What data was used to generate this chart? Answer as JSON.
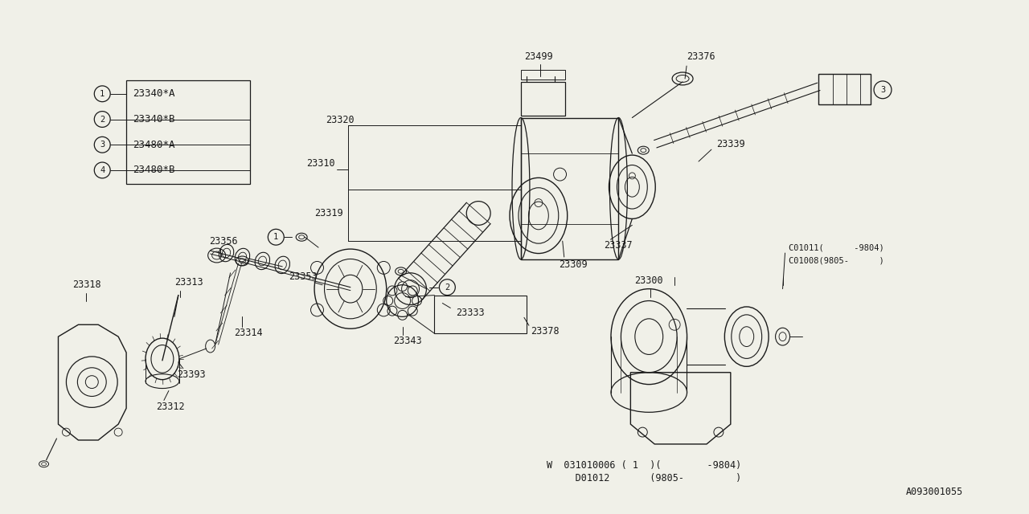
{
  "bg_color": "#f0f0e8",
  "line_color": "#1a1a1a",
  "doc_id": "A093001055",
  "legend_items": [
    {
      "num": 1,
      "text": "23340*A"
    },
    {
      "num": 2,
      "text": "23340*B"
    },
    {
      "num": 3,
      "text": "23480*A"
    },
    {
      "num": 4,
      "text": "23480*B"
    }
  ],
  "label_font_size": 8.5,
  "bottom_line1": "W  031010006 ( 1  )(        -9804)",
  "bottom_line2": "     D01012       (9805-         )"
}
